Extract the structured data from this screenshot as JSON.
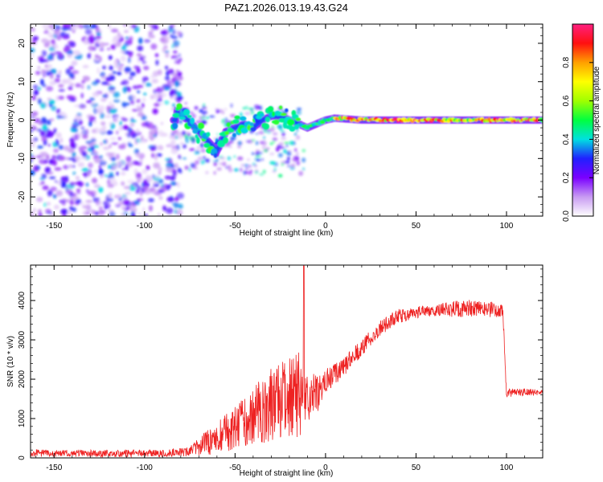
{
  "figure": {
    "title": "PAZ1.2026.013.19.43.G24"
  },
  "chart_data": [
    {
      "type": "heatmap",
      "name": "spectrogram",
      "xlabel": "Height of straight line (km)",
      "ylabel": "Frequency (Hz)",
      "xlim": [
        -163,
        120
      ],
      "ylim": [
        -25,
        25
      ],
      "xticks": [
        -150,
        -100,
        -50,
        0,
        50,
        100
      ],
      "yticks": [
        -20,
        -10,
        0,
        10,
        20
      ],
      "colorbar": {
        "label": "Normalized spectral amplitude",
        "range": [
          0.0,
          1.0
        ],
        "ticks": [
          0.0,
          0.2,
          0.4,
          0.6,
          0.8
        ],
        "tick_labels": [
          "0.0",
          "0.2",
          "0.4",
          "0.6",
          "0.8"
        ],
        "colormap": [
          "#ffffff",
          "#c89bf2",
          "#7a00ff",
          "#2020ff",
          "#00e0e0",
          "#00ff40",
          "#a0ff00",
          "#ffff00",
          "#ffa000",
          "#ff1010",
          "#ff2080"
        ]
      },
      "ridge": [
        {
          "x": -82,
          "y": 2
        },
        {
          "x": -76,
          "y": 0
        },
        {
          "x": -70,
          "y": -3
        },
        {
          "x": -64,
          "y": -6
        },
        {
          "x": -60,
          "y": -8
        },
        {
          "x": -55,
          "y": -3
        },
        {
          "x": -50,
          "y": -2
        },
        {
          "x": -45,
          "y": -1
        },
        {
          "x": -40,
          "y": -2
        },
        {
          "x": -35,
          "y": 0
        },
        {
          "x": -30,
          "y": 1
        },
        {
          "x": -25,
          "y": 1
        },
        {
          "x": -20,
          "y": 0
        },
        {
          "x": -15,
          "y": -1
        },
        {
          "x": -10,
          "y": -2
        },
        {
          "x": -5,
          "y": -1
        },
        {
          "x": 0,
          "y": 0
        },
        {
          "x": 5,
          "y": 0.5
        },
        {
          "x": 20,
          "y": 0
        },
        {
          "x": 40,
          "y": 0
        },
        {
          "x": 60,
          "y": 0
        },
        {
          "x": 80,
          "y": 0
        },
        {
          "x": 100,
          "y": 0
        },
        {
          "x": 120,
          "y": 0
        }
      ]
    },
    {
      "type": "line",
      "name": "snr",
      "xlabel": "Height of straight line (km)",
      "ylabel": "SNR (10 * v/v)",
      "xlim": [
        -163,
        120
      ],
      "ylim": [
        0,
        4900
      ],
      "xticks": [
        -150,
        -100,
        -50,
        0,
        50,
        100
      ],
      "yticks": [
        0,
        1000,
        2000,
        3000,
        4000
      ],
      "color": "#ee2222",
      "envelope": {
        "x": [
          -163,
          -120,
          -90,
          -75,
          -70,
          -60,
          -50,
          -40,
          -30,
          -20,
          -15,
          -10,
          -5,
          0,
          10,
          20,
          30,
          40,
          50,
          60,
          70,
          80,
          90,
          98,
          100,
          110,
          120
        ],
        "base": [
          120,
          110,
          120,
          150,
          200,
          350,
          550,
          800,
          1000,
          1100,
          1200,
          1300,
          1600,
          1950,
          2300,
          2800,
          3300,
          3600,
          3700,
          3750,
          3780,
          3800,
          3780,
          3750,
          1650,
          1680,
          1650
        ],
        "noise": [
          90,
          90,
          90,
          120,
          300,
          500,
          700,
          900,
          1200,
          1300,
          1400,
          900,
          500,
          300,
          250,
          220,
          200,
          180,
          150,
          150,
          200,
          220,
          200,
          180,
          120,
          90,
          70
        ]
      },
      "spike": {
        "x": -12,
        "y": 4880
      }
    }
  ]
}
